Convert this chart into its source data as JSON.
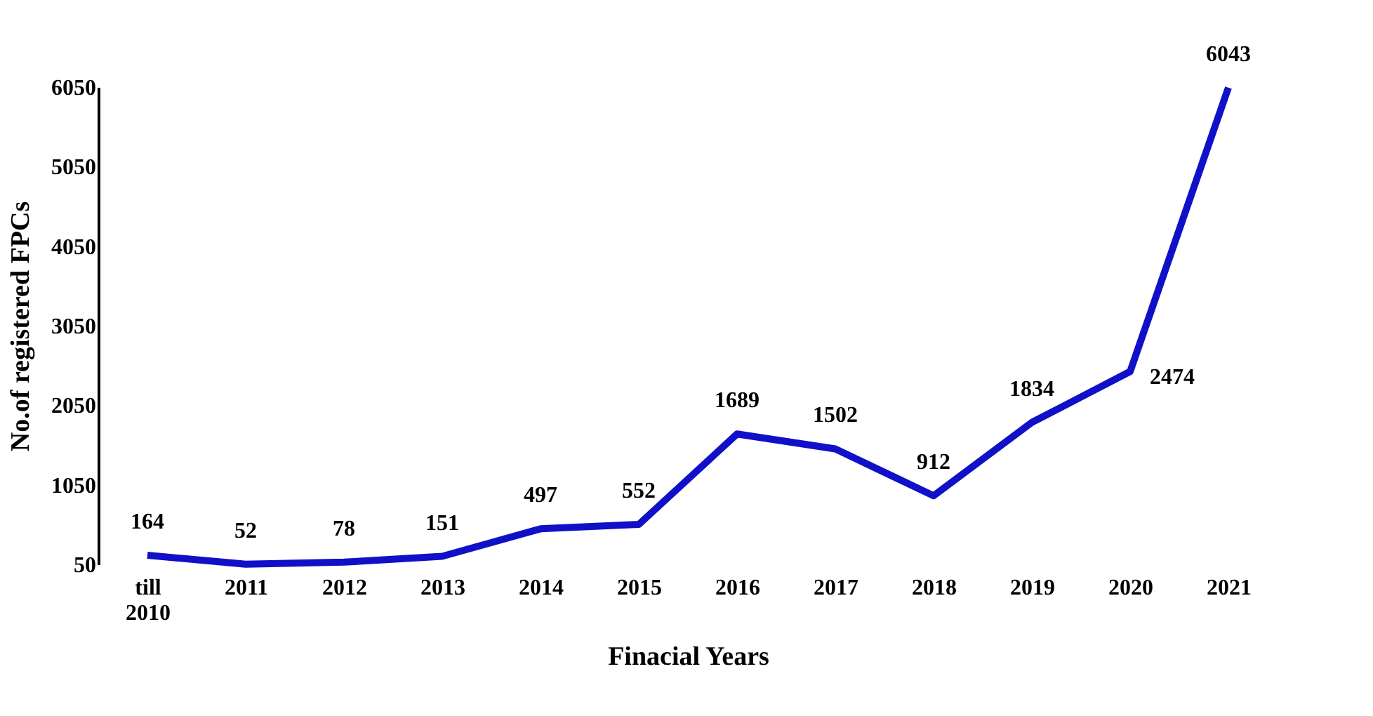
{
  "chart_data": {
    "type": "line",
    "xlabel": "Finacial Years",
    "ylabel": "No.of registered FPCs",
    "categories": [
      "till 2010",
      "2011",
      "2012",
      "2013",
      "2014",
      "2015",
      "2016",
      "2017",
      "2018",
      "2019",
      "2020",
      "2021"
    ],
    "series": [
      {
        "color": "#1010c8",
        "values": [
          164,
          52,
          78,
          151,
          497,
          552,
          1689,
          1502,
          912,
          1834,
          2474,
          6043
        ]
      }
    ],
    "ylim": [
      50,
      6050
    ],
    "yticks": [
      50,
      1050,
      2050,
      3050,
      4050,
      5050,
      6050
    ],
    "data_labels": true,
    "grid": false,
    "legend": false,
    "marker": "none",
    "line_style": "solid"
  }
}
